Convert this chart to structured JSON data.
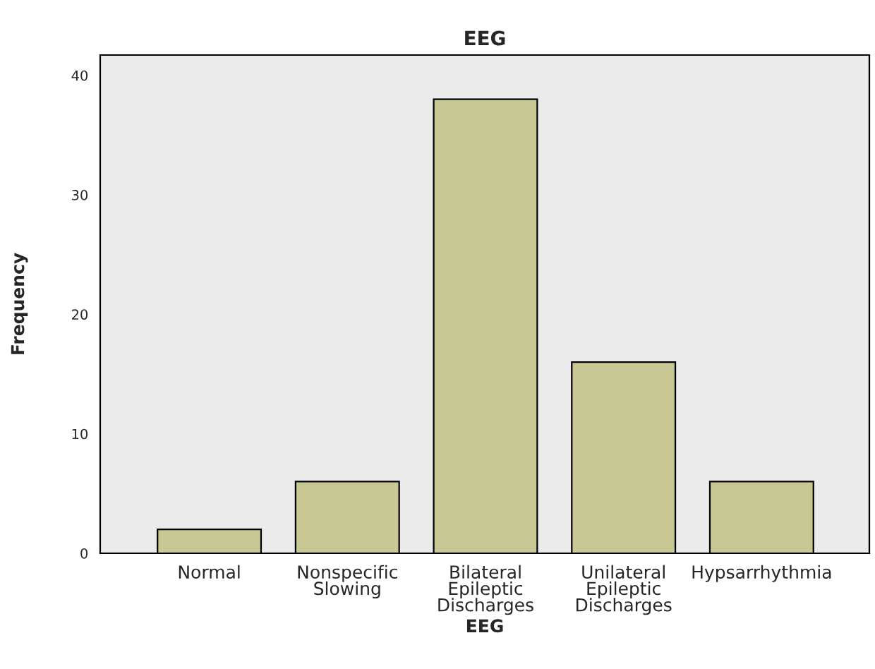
{
  "chart_data": {
    "type": "bar",
    "title": "EEG",
    "xlabel": "EEG",
    "ylabel": "Frequency",
    "categories": [
      "Normal",
      "Nonspecific\nSlowing",
      "Bilateral\nEpileptic\nDischarges",
      "Unilateral\nEpileptic\nDischarges",
      "Hypsarrhythmia"
    ],
    "values": [
      2,
      6,
      38,
      16,
      6
    ],
    "color": "#c8c894",
    "ylim": [
      0,
      41.7
    ],
    "yticks": [
      0,
      10,
      20,
      30,
      40
    ],
    "grid": false,
    "legend": false
  }
}
